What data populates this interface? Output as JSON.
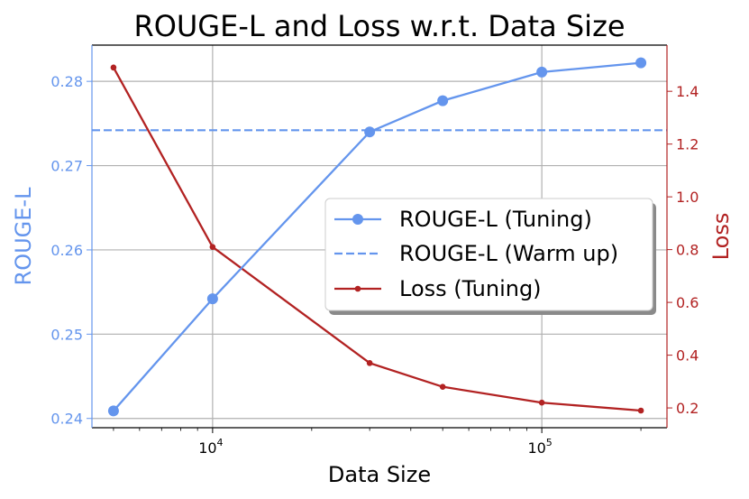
{
  "chart_data": {
    "type": "line",
    "title": "ROUGE-L and Loss w.r.t. Data Size",
    "xlabel": "Data Size",
    "y_left_label": "ROUGE-L",
    "y_right_label": "Loss",
    "x_scale": "log",
    "xlim": [
      4300,
      240000
    ],
    "ylim_left": [
      0.2389,
      0.2843
    ],
    "ylim_right": [
      0.125,
      1.575
    ],
    "x_ticks": [
      {
        "value": 10000,
        "base": "10",
        "exp": "4"
      },
      {
        "value": 100000,
        "base": "10",
        "exp": "5"
      }
    ],
    "y_left_ticks": [
      0.24,
      0.25,
      0.26,
      0.27,
      0.28
    ],
    "y_left_tick_labels": [
      "0.24",
      "0.25",
      "0.26",
      "0.27",
      "0.28"
    ],
    "y_right_ticks": [
      0.2,
      0.4,
      0.6,
      0.8,
      1.0,
      1.2,
      1.4
    ],
    "y_right_tick_labels": [
      "0.2",
      "0.4",
      "0.6",
      "0.8",
      "1.0",
      "1.2",
      "1.4"
    ],
    "grid": true,
    "legend_position": "center-right",
    "series": [
      {
        "name": "ROUGE-L (Tuning)",
        "axis": "left",
        "style": "line-marker",
        "color": "#6495ED",
        "x": [
          5000,
          10000,
          30000,
          50000,
          100000,
          200000
        ],
        "values": [
          0.2409,
          0.2542,
          0.274,
          0.2777,
          0.2811,
          0.2822
        ]
      },
      {
        "name": "ROUGE-L (Warm up)",
        "axis": "left",
        "style": "dashed",
        "color": "#6495ED",
        "value": 0.2742
      },
      {
        "name": "Loss (Tuning)",
        "axis": "right",
        "style": "line-small-marker",
        "color": "#B22222",
        "x": [
          5000,
          10000,
          30000,
          50000,
          100000,
          200000
        ],
        "values": [
          1.49,
          0.81,
          0.37,
          0.28,
          0.22,
          0.19
        ]
      }
    ]
  }
}
